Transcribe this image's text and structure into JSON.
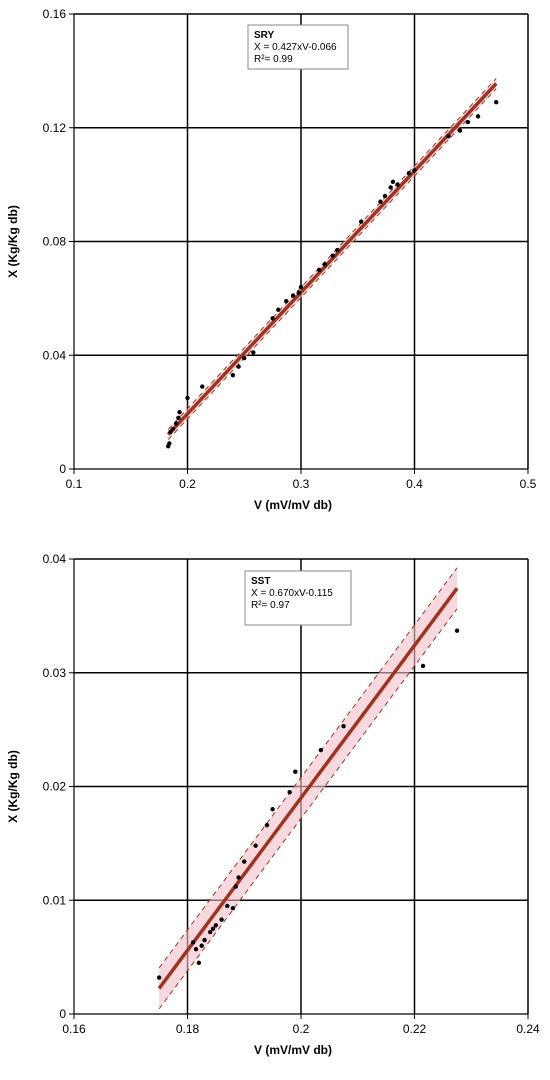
{
  "chart_data": [
    {
      "type": "scatter",
      "xlabel": "V (mV/mV db)",
      "ylabel": "X (Kg/Kg db)",
      "xlim": [
        0.1,
        0.5
      ],
      "ylim": [
        0,
        0.16
      ],
      "xticks": [
        "0.1",
        "0.2",
        "0.3",
        "0.4",
        "0.5"
      ],
      "yticks": [
        "0",
        "0.04",
        "0.08",
        "0.12",
        "0.16"
      ],
      "xtick_values": [
        0.1,
        0.2,
        0.3,
        0.4,
        0.5
      ],
      "ytick_values": [
        0,
        0.04,
        0.08,
        0.12,
        0.16
      ],
      "grid": true,
      "annotation": {
        "title": "SRY",
        "equation": "X = 0.427xV-0.066",
        "r2": "R²= 0.99"
      },
      "fit": {
        "slope": 0.427,
        "intercept": -0.066,
        "x_range": [
          0.183,
          0.472
        ],
        "band": 0.0018,
        "line_color": "#a0321e",
        "band_color": "#f0c0c8"
      },
      "points": [
        [
          0.183,
          0.008
        ],
        [
          0.184,
          0.009
        ],
        [
          0.185,
          0.013
        ],
        [
          0.187,
          0.014
        ],
        [
          0.19,
          0.016
        ],
        [
          0.192,
          0.018
        ],
        [
          0.193,
          0.02
        ],
        [
          0.2,
          0.025
        ],
        [
          0.213,
          0.029
        ],
        [
          0.24,
          0.033
        ],
        [
          0.245,
          0.036
        ],
        [
          0.25,
          0.039
        ],
        [
          0.258,
          0.041
        ],
        [
          0.275,
          0.053
        ],
        [
          0.28,
          0.056
        ],
        [
          0.287,
          0.059
        ],
        [
          0.293,
          0.061
        ],
        [
          0.298,
          0.062
        ],
        [
          0.3,
          0.064
        ],
        [
          0.316,
          0.07
        ],
        [
          0.321,
          0.072
        ],
        [
          0.328,
          0.075
        ],
        [
          0.332,
          0.077
        ],
        [
          0.353,
          0.087
        ],
        [
          0.37,
          0.094
        ],
        [
          0.374,
          0.096
        ],
        [
          0.379,
          0.099
        ],
        [
          0.381,
          0.101
        ],
        [
          0.385,
          0.1
        ],
        [
          0.395,
          0.104
        ],
        [
          0.4,
          0.105
        ],
        [
          0.43,
          0.117
        ],
        [
          0.44,
          0.119
        ],
        [
          0.447,
          0.122
        ],
        [
          0.456,
          0.124
        ],
        [
          0.472,
          0.129
        ]
      ]
    },
    {
      "type": "scatter",
      "xlabel": "V (mV/mV db)",
      "ylabel": "X (Kg/Kg db)",
      "xlim": [
        0.16,
        0.24
      ],
      "ylim": [
        0,
        0.04
      ],
      "xticks": [
        "0.16",
        "0.18",
        "0.2",
        "0.22",
        "0.24"
      ],
      "yticks": [
        "0",
        "0.01",
        "0.02",
        "0.03",
        "0.04"
      ],
      "xtick_values": [
        0.16,
        0.18,
        0.2,
        0.22,
        0.24
      ],
      "ytick_values": [
        0,
        0.01,
        0.02,
        0.03,
        0.04
      ],
      "grid": true,
      "annotation": {
        "title": "SST",
        "equation": "X = 0.670xV-0.115",
        "r2": "R²= 0.97"
      },
      "fit": {
        "slope": 0.67,
        "intercept": -0.115,
        "x_range": [
          0.175,
          0.2275
        ],
        "band": 0.0018,
        "line_color": "#a0321e",
        "band_color": "#f0c0c8"
      },
      "points": [
        [
          0.175,
          0.0032
        ],
        [
          0.181,
          0.0063
        ],
        [
          0.1815,
          0.0057
        ],
        [
          0.182,
          0.0045
        ],
        [
          0.1825,
          0.006
        ],
        [
          0.183,
          0.0065
        ],
        [
          0.184,
          0.0072
        ],
        [
          0.1845,
          0.0075
        ],
        [
          0.185,
          0.0078
        ],
        [
          0.186,
          0.0083
        ],
        [
          0.187,
          0.0095
        ],
        [
          0.188,
          0.0093
        ],
        [
          0.1885,
          0.0112
        ],
        [
          0.189,
          0.012
        ],
        [
          0.19,
          0.0134
        ],
        [
          0.192,
          0.0148
        ],
        [
          0.194,
          0.0166
        ],
        [
          0.195,
          0.018
        ],
        [
          0.198,
          0.0195
        ],
        [
          0.199,
          0.0213
        ],
        [
          0.2035,
          0.0232
        ],
        [
          0.2075,
          0.0253
        ],
        [
          0.2215,
          0.0306
        ],
        [
          0.2275,
          0.0337
        ]
      ]
    }
  ]
}
